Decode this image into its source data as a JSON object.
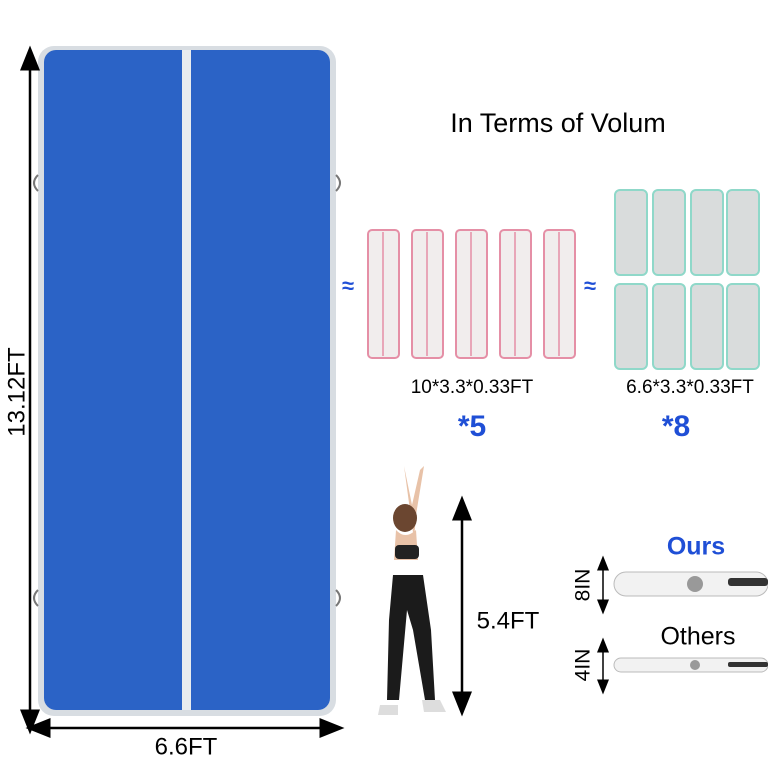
{
  "mat": {
    "height_label": "13.12FT",
    "width_label": "6.6FT"
  },
  "comparison": {
    "title": "In Terms of Volum",
    "options": [
      {
        "approx": "≈",
        "size": "10*3.3*0.33FT",
        "count": "*5"
      },
      {
        "approx": "≈",
        "size": "6.6*3.3*0.33FT",
        "count": "*8"
      }
    ]
  },
  "person": {
    "height_label": "5.4FT"
  },
  "thickness": {
    "ours": {
      "label": "Ours",
      "value": "8IN"
    },
    "others": {
      "label": "Others",
      "value": "4IN"
    }
  }
}
